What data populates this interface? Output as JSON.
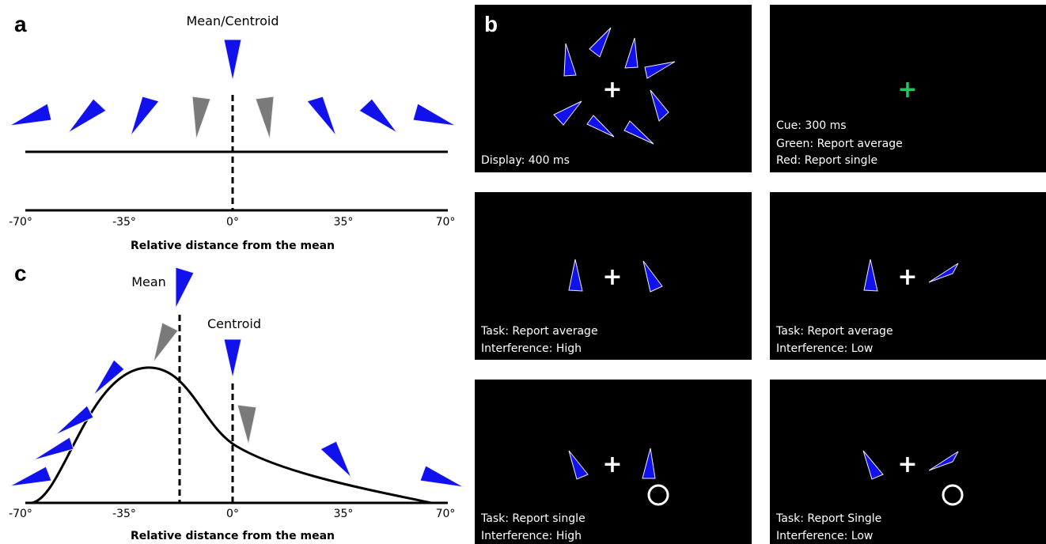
{
  "panels": {
    "a": {
      "letter": "a",
      "title": "Mean/Centroid"
    },
    "b": {
      "letter": "b"
    },
    "c": {
      "letter": "c",
      "mean_label": "Mean",
      "centroid_label": "Centroid"
    }
  },
  "axis": {
    "ticks": [
      "-70°",
      "-35°",
      "0°",
      "35°",
      "70°"
    ],
    "xlabel": "Relative distance from the mean"
  },
  "screens": [
    {
      "lines": [
        "Display: 400 ms"
      ],
      "cross_color": "#ffffff"
    },
    {
      "lines": [
        "Cue: 300 ms",
        "Green: Report average",
        "Red: Report single"
      ],
      "cross_color": "#22c55e"
    },
    {
      "lines": [
        "Task: Report average",
        "Interference: High"
      ],
      "cross_color": "#ffffff"
    },
    {
      "lines": [
        "Task: Report average",
        "Interference: Low"
      ],
      "cross_color": "#ffffff"
    },
    {
      "lines": [
        "Task: Report single",
        "Interference: High"
      ],
      "cross_color": "#ffffff"
    },
    {
      "lines": [
        "Task: Report Single",
        "Interference: Low"
      ],
      "cross_color": "#ffffff"
    }
  ],
  "colors": {
    "stimulus": "#1111ee",
    "distractor": "#7a7a7a",
    "screen_bg": "#000000"
  }
}
